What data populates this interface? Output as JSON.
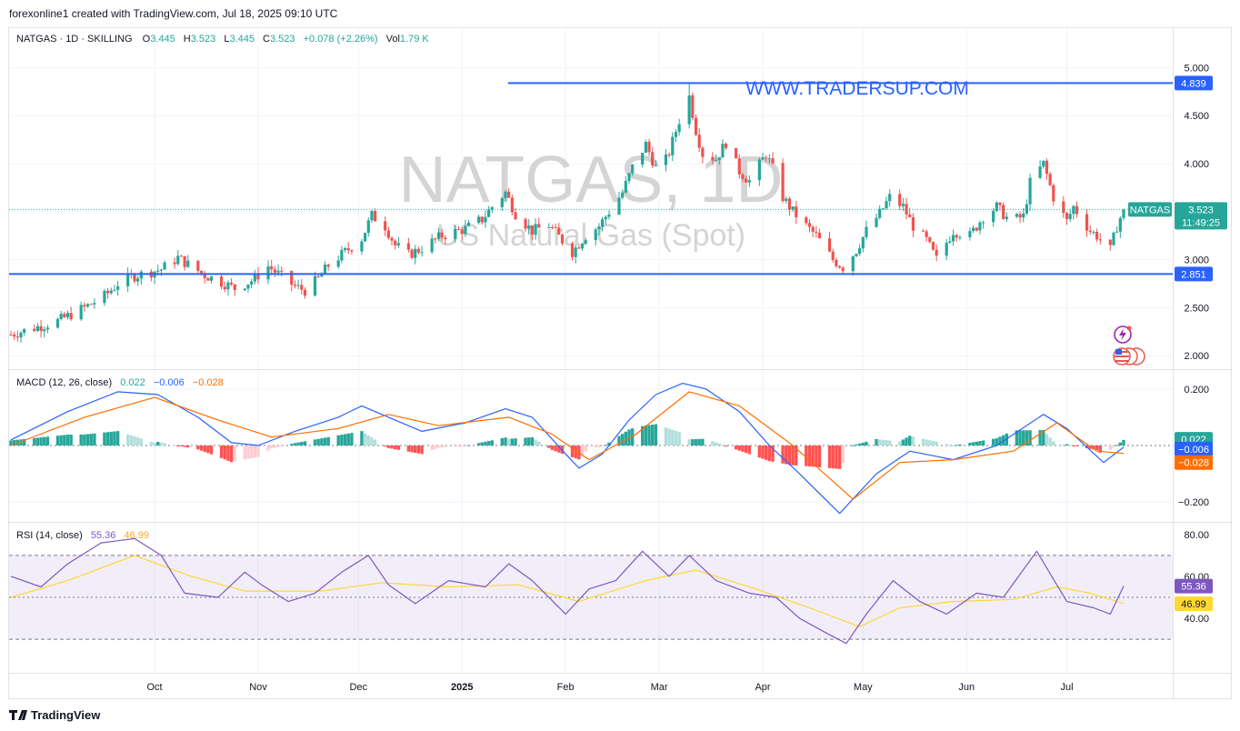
{
  "header": {
    "caption": "forexonline1 created with TradingView.com, Jul 18, 2025 09:10 UTC",
    "symbol_line": "NATGAS · 1D · SKILLING",
    "o_label": "O",
    "o_value": "3.445",
    "h_label": "H",
    "h_value": "3.523",
    "l_label": "L",
    "l_value": "3.445",
    "c_label": "C",
    "c_value": "3.523",
    "change": "+0.078 (+2.26%)",
    "vol_label": "Vol",
    "vol_value": "1.79 K"
  },
  "watermark": {
    "symbol": "NATGAS, 1D",
    "name": "US Natural Gas (Spot)"
  },
  "website_text": "WWW.TRADERSUP.COM",
  "footer_brand": "TradingView",
  "colors": {
    "up": "#26a69a",
    "down": "#ef5350",
    "level": "#2962ff",
    "macd": "#2962ff",
    "signal": "#ff6d00",
    "rsi": "#7e57c2",
    "rsi_ma": "#fdd835",
    "hist_up_strong": "#26a69a",
    "hist_up_weak": "#b2dfdb",
    "hist_down_strong": "#ff5252",
    "hist_down_weak": "#ffcdd2"
  },
  "chart_data": [
    {
      "type": "candlestick",
      "panel": "price",
      "ylim": [
        2.0,
        5.0
      ],
      "y_ticks": [
        "5.000",
        "4.500",
        "4.000",
        "3.500",
        "3.000",
        "2.500",
        "2.000"
      ],
      "x_ticks": [
        "Oct",
        "Nov",
        "Dec",
        "2025",
        "Feb",
        "Mar",
        "Apr",
        "May",
        "Jun",
        "Jul"
      ],
      "x_dates": [
        "2024-10-01",
        "2024-11-01",
        "2024-12-01",
        "2025-01-01",
        "2025-02-01",
        "2025-03-01",
        "2025-04-01",
        "2025-05-01",
        "2025-06-01",
        "2025-07-01"
      ],
      "date_range": [
        "2024-08-19",
        "2025-07-18"
      ],
      "close_path": [
        [
          "2024-08-19",
          2.22
        ],
        [
          "2024-09-02",
          2.36
        ],
        [
          "2024-09-10",
          2.5
        ],
        [
          "2024-09-16",
          2.62
        ],
        [
          "2024-09-20",
          2.75
        ],
        [
          "2024-09-25",
          2.83
        ],
        [
          "2024-10-03",
          2.9
        ],
        [
          "2024-10-08",
          3.02
        ],
        [
          "2024-10-11",
          2.95
        ],
        [
          "2024-10-16",
          2.84
        ],
        [
          "2024-10-22",
          2.75
        ],
        [
          "2024-10-25",
          2.7
        ],
        [
          "2024-10-30",
          2.78
        ],
        [
          "2024-11-04",
          2.93
        ],
        [
          "2024-11-07",
          2.85
        ],
        [
          "2024-11-12",
          2.72
        ],
        [
          "2024-11-15",
          2.68
        ],
        [
          "2024-11-19",
          2.8
        ],
        [
          "2024-11-22",
          2.94
        ],
        [
          "2024-11-27",
          3.08
        ],
        [
          "2024-12-02",
          3.22
        ],
        [
          "2024-12-05",
          3.46
        ],
        [
          "2024-12-09",
          3.35
        ],
        [
          "2024-12-12",
          3.15
        ],
        [
          "2024-12-16",
          3.05
        ],
        [
          "2024-12-20",
          3.12
        ],
        [
          "2024-12-26",
          3.25
        ],
        [
          "2025-01-02",
          3.32
        ],
        [
          "2025-01-07",
          3.42
        ],
        [
          "2025-01-10",
          3.55
        ],
        [
          "2025-01-14",
          3.7
        ],
        [
          "2025-01-17",
          3.48
        ],
        [
          "2025-01-22",
          3.3
        ],
        [
          "2025-01-27",
          3.36
        ],
        [
          "2025-02-03",
          3.08
        ],
        [
          "2025-02-07",
          3.25
        ],
        [
          "2025-02-11",
          3.35
        ],
        [
          "2025-02-14",
          3.5
        ],
        [
          "2025-02-18",
          3.7
        ],
        [
          "2025-02-21",
          3.96
        ],
        [
          "2025-02-25",
          4.2
        ],
        [
          "2025-03-01",
          3.88
        ],
        [
          "2025-03-04",
          4.12
        ],
        [
          "2025-03-07",
          4.45
        ],
        [
          "2025-03-10",
          4.7
        ],
        [
          "2025-03-12",
          4.35
        ],
        [
          "2025-03-14",
          4.1
        ],
        [
          "2025-03-18",
          4.05
        ],
        [
          "2025-03-21",
          4.22
        ],
        [
          "2025-03-25",
          3.92
        ],
        [
          "2025-03-28",
          3.82
        ],
        [
          "2025-04-02",
          4.1
        ],
        [
          "2025-04-04",
          3.95
        ],
        [
          "2025-04-07",
          3.65
        ],
        [
          "2025-04-10",
          3.5
        ],
        [
          "2025-04-14",
          3.35
        ],
        [
          "2025-04-17",
          3.25
        ],
        [
          "2025-04-22",
          3.0
        ],
        [
          "2025-04-25",
          2.92
        ],
        [
          "2025-04-29",
          3.1
        ],
        [
          "2025-05-02",
          3.3
        ],
        [
          "2025-05-06",
          3.48
        ],
        [
          "2025-05-09",
          3.65
        ],
        [
          "2025-05-13",
          3.55
        ],
        [
          "2025-05-16",
          3.35
        ],
        [
          "2025-05-20",
          3.2
        ],
        [
          "2025-05-23",
          3.0
        ],
        [
          "2025-05-28",
          3.3
        ],
        [
          "2025-06-02",
          3.25
        ],
        [
          "2025-06-06",
          3.45
        ],
        [
          "2025-06-10",
          3.55
        ],
        [
          "2025-06-14",
          3.4
        ],
        [
          "2025-06-18",
          3.45
        ],
        [
          "2025-06-20",
          3.8
        ],
        [
          "2025-06-24",
          4.0
        ],
        [
          "2025-06-27",
          3.65
        ],
        [
          "2025-07-01",
          3.4
        ],
        [
          "2025-07-03",
          3.55
        ],
        [
          "2025-07-08",
          3.3
        ],
        [
          "2025-07-10",
          3.25
        ],
        [
          "2025-07-14",
          3.1
        ],
        [
          "2025-07-16",
          3.35
        ],
        [
          "2025-07-18",
          3.523
        ]
      ],
      "levels": [
        {
          "value": 4.839,
          "label": "4.839"
        },
        {
          "value": 2.851,
          "label": "2.851"
        }
      ],
      "last_price": {
        "value": 3.523,
        "label": "3.523",
        "symbol": "NATGAS",
        "countdown": "11:49:25"
      }
    },
    {
      "type": "line",
      "panel": "macd",
      "title": "MACD (12, 26, close)",
      "values_shown": [
        "0.022",
        "−0.006",
        "−0.028"
      ],
      "ylim": [
        -0.27,
        0.27
      ],
      "y_ticks": [
        "0.200",
        "−0.200"
      ],
      "series": [
        {
          "name": "MACD",
          "points": [
            [
              "2024-08-19",
              0.02
            ],
            [
              "2024-09-05",
              0.12
            ],
            [
              "2024-09-20",
              0.19
            ],
            [
              "2024-10-02",
              0.18
            ],
            [
              "2024-10-14",
              0.1
            ],
            [
              "2024-10-24",
              0.01
            ],
            [
              "2024-11-01",
              0.0
            ],
            [
              "2024-11-12",
              0.05
            ],
            [
              "2024-11-25",
              0.1
            ],
            [
              "2024-12-02",
              0.14
            ],
            [
              "2024-12-10",
              0.1
            ],
            [
              "2024-12-20",
              0.05
            ],
            [
              "2025-01-02",
              0.08
            ],
            [
              "2025-01-14",
              0.13
            ],
            [
              "2025-01-22",
              0.1
            ],
            [
              "2025-02-01",
              -0.03
            ],
            [
              "2025-02-05",
              -0.08
            ],
            [
              "2025-02-12",
              -0.03
            ],
            [
              "2025-02-20",
              0.09
            ],
            [
              "2025-02-28",
              0.18
            ],
            [
              "2025-03-08",
              0.22
            ],
            [
              "2025-03-15",
              0.2
            ],
            [
              "2025-03-25",
              0.12
            ],
            [
              "2025-04-03",
              0.0
            ],
            [
              "2025-04-12",
              -0.1
            ],
            [
              "2025-04-24",
              -0.24
            ],
            [
              "2025-05-05",
              -0.1
            ],
            [
              "2025-05-15",
              -0.02
            ],
            [
              "2025-05-28",
              -0.05
            ],
            [
              "2025-06-10",
              0.0
            ],
            [
              "2025-06-24",
              0.11
            ],
            [
              "2025-07-01",
              0.06
            ],
            [
              "2025-07-12",
              -0.06
            ],
            [
              "2025-07-18",
              -0.006
            ]
          ]
        },
        {
          "name": "Signal",
          "points": [
            [
              "2024-08-19",
              0.0
            ],
            [
              "2024-09-10",
              0.1
            ],
            [
              "2024-10-01",
              0.17
            ],
            [
              "2024-10-20",
              0.09
            ],
            [
              "2024-11-05",
              0.03
            ],
            [
              "2024-11-25",
              0.06
            ],
            [
              "2024-12-10",
              0.11
            ],
            [
              "2024-12-25",
              0.07
            ],
            [
              "2025-01-15",
              0.1
            ],
            [
              "2025-01-28",
              0.04
            ],
            [
              "2025-02-08",
              -0.05
            ],
            [
              "2025-02-22",
              0.04
            ],
            [
              "2025-03-10",
              0.19
            ],
            [
              "2025-03-25",
              0.14
            ],
            [
              "2025-04-10",
              0.0
            ],
            [
              "2025-04-28",
              -0.19
            ],
            [
              "2025-05-12",
              -0.06
            ],
            [
              "2025-05-28",
              -0.05
            ],
            [
              "2025-06-15",
              -0.02
            ],
            [
              "2025-06-28",
              0.08
            ],
            [
              "2025-07-10",
              -0.02
            ],
            [
              "2025-07-18",
              -0.028
            ]
          ]
        }
      ],
      "histogram": {
        "value": 0.022
      }
    },
    {
      "type": "line",
      "panel": "rsi",
      "title": "RSI (14, close)",
      "values_shown": [
        "55.36",
        "46.99"
      ],
      "ylim": [
        20,
        80
      ],
      "y_ticks": [
        "80.00",
        "60.00",
        "40.00"
      ],
      "bands": [
        70,
        50,
        30
      ],
      "series": [
        {
          "name": "RSI",
          "points": [
            [
              "2024-08-19",
              60
            ],
            [
              "2024-08-28",
              55
            ],
            [
              "2024-09-05",
              66
            ],
            [
              "2024-09-15",
              76
            ],
            [
              "2024-09-25",
              78
            ],
            [
              "2024-10-03",
              70
            ],
            [
              "2024-10-10",
              52
            ],
            [
              "2024-10-20",
              50
            ],
            [
              "2024-10-28",
              62
            ],
            [
              "2024-11-02",
              56
            ],
            [
              "2024-11-10",
              48
            ],
            [
              "2024-11-18",
              52
            ],
            [
              "2024-11-26",
              62
            ],
            [
              "2024-12-04",
              70
            ],
            [
              "2024-12-10",
              56
            ],
            [
              "2024-12-18",
              47
            ],
            [
              "2024-12-28",
              58
            ],
            [
              "2025-01-08",
              55
            ],
            [
              "2025-01-15",
              66
            ],
            [
              "2025-01-22",
              58
            ],
            [
              "2025-02-01",
              42
            ],
            [
              "2025-02-08",
              54
            ],
            [
              "2025-02-16",
              58
            ],
            [
              "2025-02-24",
              72
            ],
            [
              "2025-03-04",
              60
            ],
            [
              "2025-03-10",
              70
            ],
            [
              "2025-03-18",
              58
            ],
            [
              "2025-03-28",
              52
            ],
            [
              "2025-04-05",
              50
            ],
            [
              "2025-04-12",
              40
            ],
            [
              "2025-04-20",
              33
            ],
            [
              "2025-04-26",
              28
            ],
            [
              "2025-05-02",
              42
            ],
            [
              "2025-05-10",
              58
            ],
            [
              "2025-05-18",
              48
            ],
            [
              "2025-05-26",
              42
            ],
            [
              "2025-06-04",
              52
            ],
            [
              "2025-06-12",
              50
            ],
            [
              "2025-06-22",
              72
            ],
            [
              "2025-07-01",
              48
            ],
            [
              "2025-07-09",
              45
            ],
            [
              "2025-07-14",
              42
            ],
            [
              "2025-07-18",
              55.36
            ]
          ]
        },
        {
          "name": "RSI-based MA",
          "points": [
            [
              "2024-08-19",
              50
            ],
            [
              "2024-09-05",
              58
            ],
            [
              "2024-09-25",
              70
            ],
            [
              "2024-10-12",
              60
            ],
            [
              "2024-10-28",
              53
            ],
            [
              "2024-11-20",
              53
            ],
            [
              "2024-12-08",
              57
            ],
            [
              "2024-12-28",
              55
            ],
            [
              "2025-01-18",
              56
            ],
            [
              "2025-02-05",
              48
            ],
            [
              "2025-02-25",
              58
            ],
            [
              "2025-03-12",
              63
            ],
            [
              "2025-03-30",
              54
            ],
            [
              "2025-04-15",
              45
            ],
            [
              "2025-04-30",
              36
            ],
            [
              "2025-05-12",
              45
            ],
            [
              "2025-05-28",
              48
            ],
            [
              "2025-06-15",
              49
            ],
            [
              "2025-06-28",
              55
            ],
            [
              "2025-07-08",
              52
            ],
            [
              "2025-07-18",
              46.99
            ]
          ]
        }
      ]
    }
  ]
}
